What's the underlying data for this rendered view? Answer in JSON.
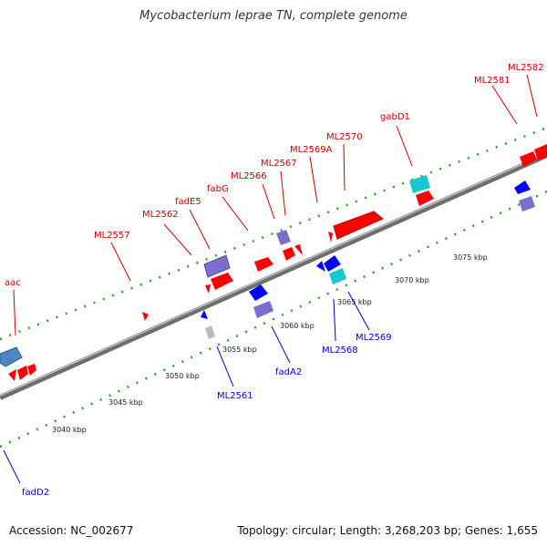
{
  "title": "Mycobacterium leprae TN, complete genome",
  "footer": {
    "accession": "Accession: NC_002677",
    "summary": "Topology: circular; Length: 3,268,203 bp; Genes: 1,655"
  },
  "colors": {
    "forward_label": "#cc0000",
    "reverse_label": "#0000cc",
    "forward_gene": "#ff0000",
    "reverse_gene": "#0000ff",
    "purple_gene": "#7a6fd0",
    "cyan_gene": "#18c8d0",
    "steel_gene": "#4a86c0",
    "grey_gene": "#bbbbbb",
    "backbone": "#888888",
    "tick_dots": "#2f9a2f"
  },
  "scale_labels": [
    "3040 kbp",
    "3045 kbp",
    "3050 kbp",
    "3055 kbp",
    "3060 kbp",
    "3065 kbp",
    "3070 kbp",
    "3075 kbp"
  ],
  "forward_labels": [
    "aac",
    "ML2557",
    "ML2562",
    "fadE5",
    "fabG",
    "ML2566",
    "ML2567",
    "ML2569A",
    "ML2570",
    "gabD1",
    "ML2581",
    "ML2582"
  ],
  "reverse_labels": [
    "fadD2",
    "ML2561",
    "fadA2",
    "ML2568",
    "ML2569"
  ]
}
